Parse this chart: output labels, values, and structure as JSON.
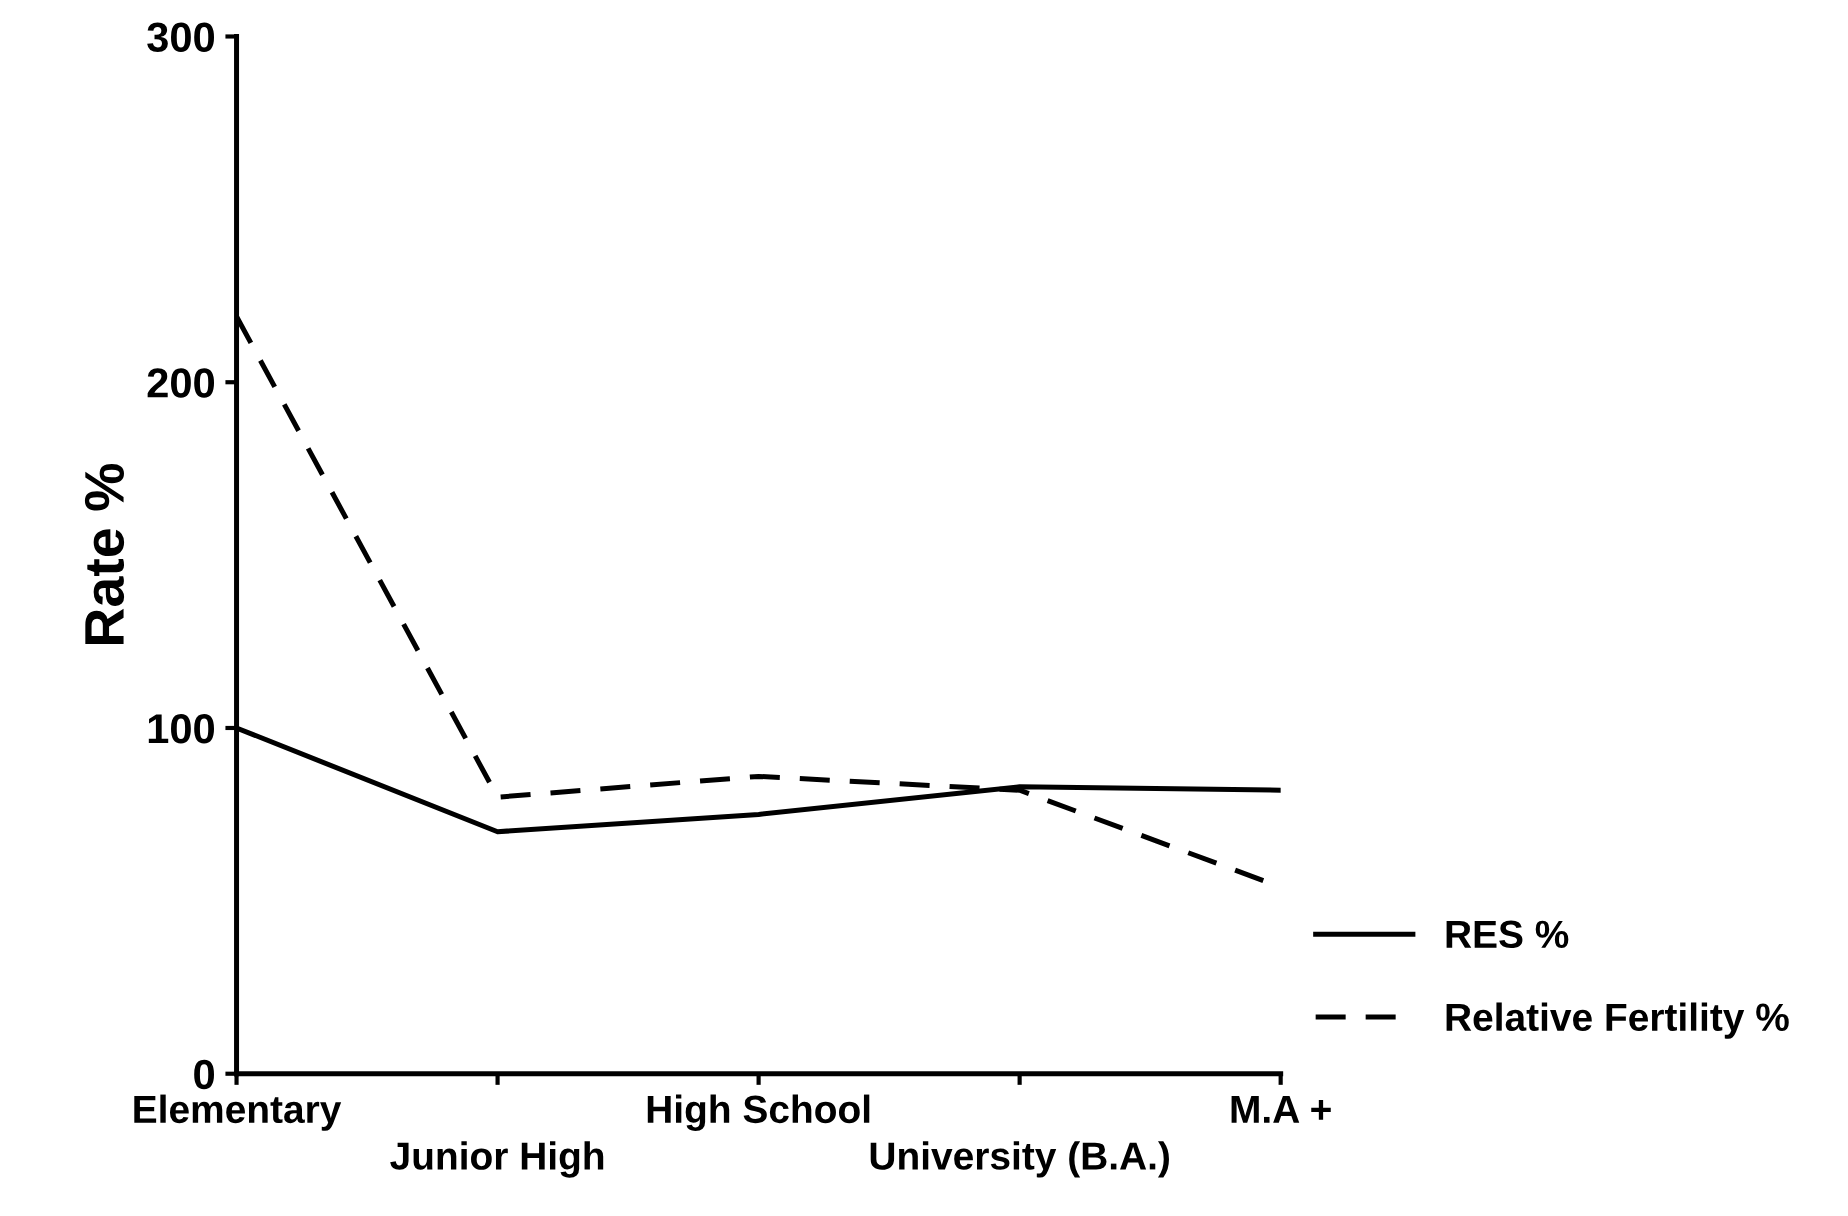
{
  "chart_data": {
    "type": "line",
    "ylabel": "Rate %",
    "categories": [
      "Elementary",
      "Junior High",
      "High School",
      "University (B.A.)",
      "M.A +"
    ],
    "series": [
      {
        "name": "RES %",
        "color": "#000000",
        "line_style": "solid",
        "values": [
          100,
          70,
          75,
          83,
          82
        ]
      },
      {
        "name": "Relative Fertility %",
        "color": "#000000",
        "line_style": "dashed",
        "values": [
          219,
          80,
          86,
          82,
          54
        ]
      }
    ],
    "ylim": [
      0,
      300
    ],
    "yticks": [
      0,
      100,
      200,
      300
    ],
    "grid": false,
    "legend": "bottom right",
    "marker": "none"
  }
}
